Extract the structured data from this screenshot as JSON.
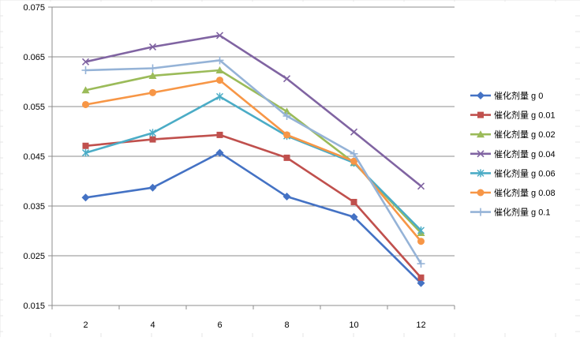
{
  "chart_data": {
    "type": "line",
    "x": [
      2,
      4,
      6,
      8,
      10,
      12
    ],
    "ylim": [
      0.015,
      0.075
    ],
    "yticks": [
      "0.015",
      "0.025",
      "0.035",
      "0.045",
      "0.055",
      "0.065",
      "0.075"
    ],
    "xticks": [
      "2",
      "4",
      "6",
      "8",
      "10",
      "12"
    ],
    "grid": "horizontal",
    "legend_position": "right",
    "series": [
      {
        "name": "催化剂量 g 0",
        "color": "#4472C4",
        "marker": "diamond",
        "values": [
          0.0367,
          0.0387,
          0.0457,
          0.0369,
          0.0328,
          0.0195
        ]
      },
      {
        "name": "催化剂量 g 0.01",
        "color": "#C0504D",
        "marker": "square",
        "values": [
          0.0471,
          0.0484,
          0.0493,
          0.0447,
          0.0358,
          0.0206
        ]
      },
      {
        "name": "催化剂量 g 0.02",
        "color": "#9BBB59",
        "marker": "triangle",
        "values": [
          0.0583,
          0.0612,
          0.0623,
          0.054,
          0.0437,
          0.0296
        ]
      },
      {
        "name": "催化剂量 g 0.04",
        "color": "#8064A2",
        "marker": "x",
        "values": [
          0.064,
          0.067,
          0.0693,
          0.0606,
          0.0499,
          0.039
        ]
      },
      {
        "name": "催化剂量 g 0.06",
        "color": "#4BACC6",
        "marker": "star",
        "values": [
          0.0457,
          0.0497,
          0.057,
          0.0491,
          0.0437,
          0.0301
        ]
      },
      {
        "name": "催化剂量 g 0.08",
        "color": "#F79646",
        "marker": "circle",
        "values": [
          0.0554,
          0.0578,
          0.0603,
          0.0493,
          0.044,
          0.0279
        ]
      },
      {
        "name": "催化剂量 g 0.1",
        "color": "#95B3D7",
        "marker": "plus",
        "values": [
          0.0623,
          0.0627,
          0.0643,
          0.0531,
          0.0455,
          0.0234
        ]
      }
    ]
  }
}
